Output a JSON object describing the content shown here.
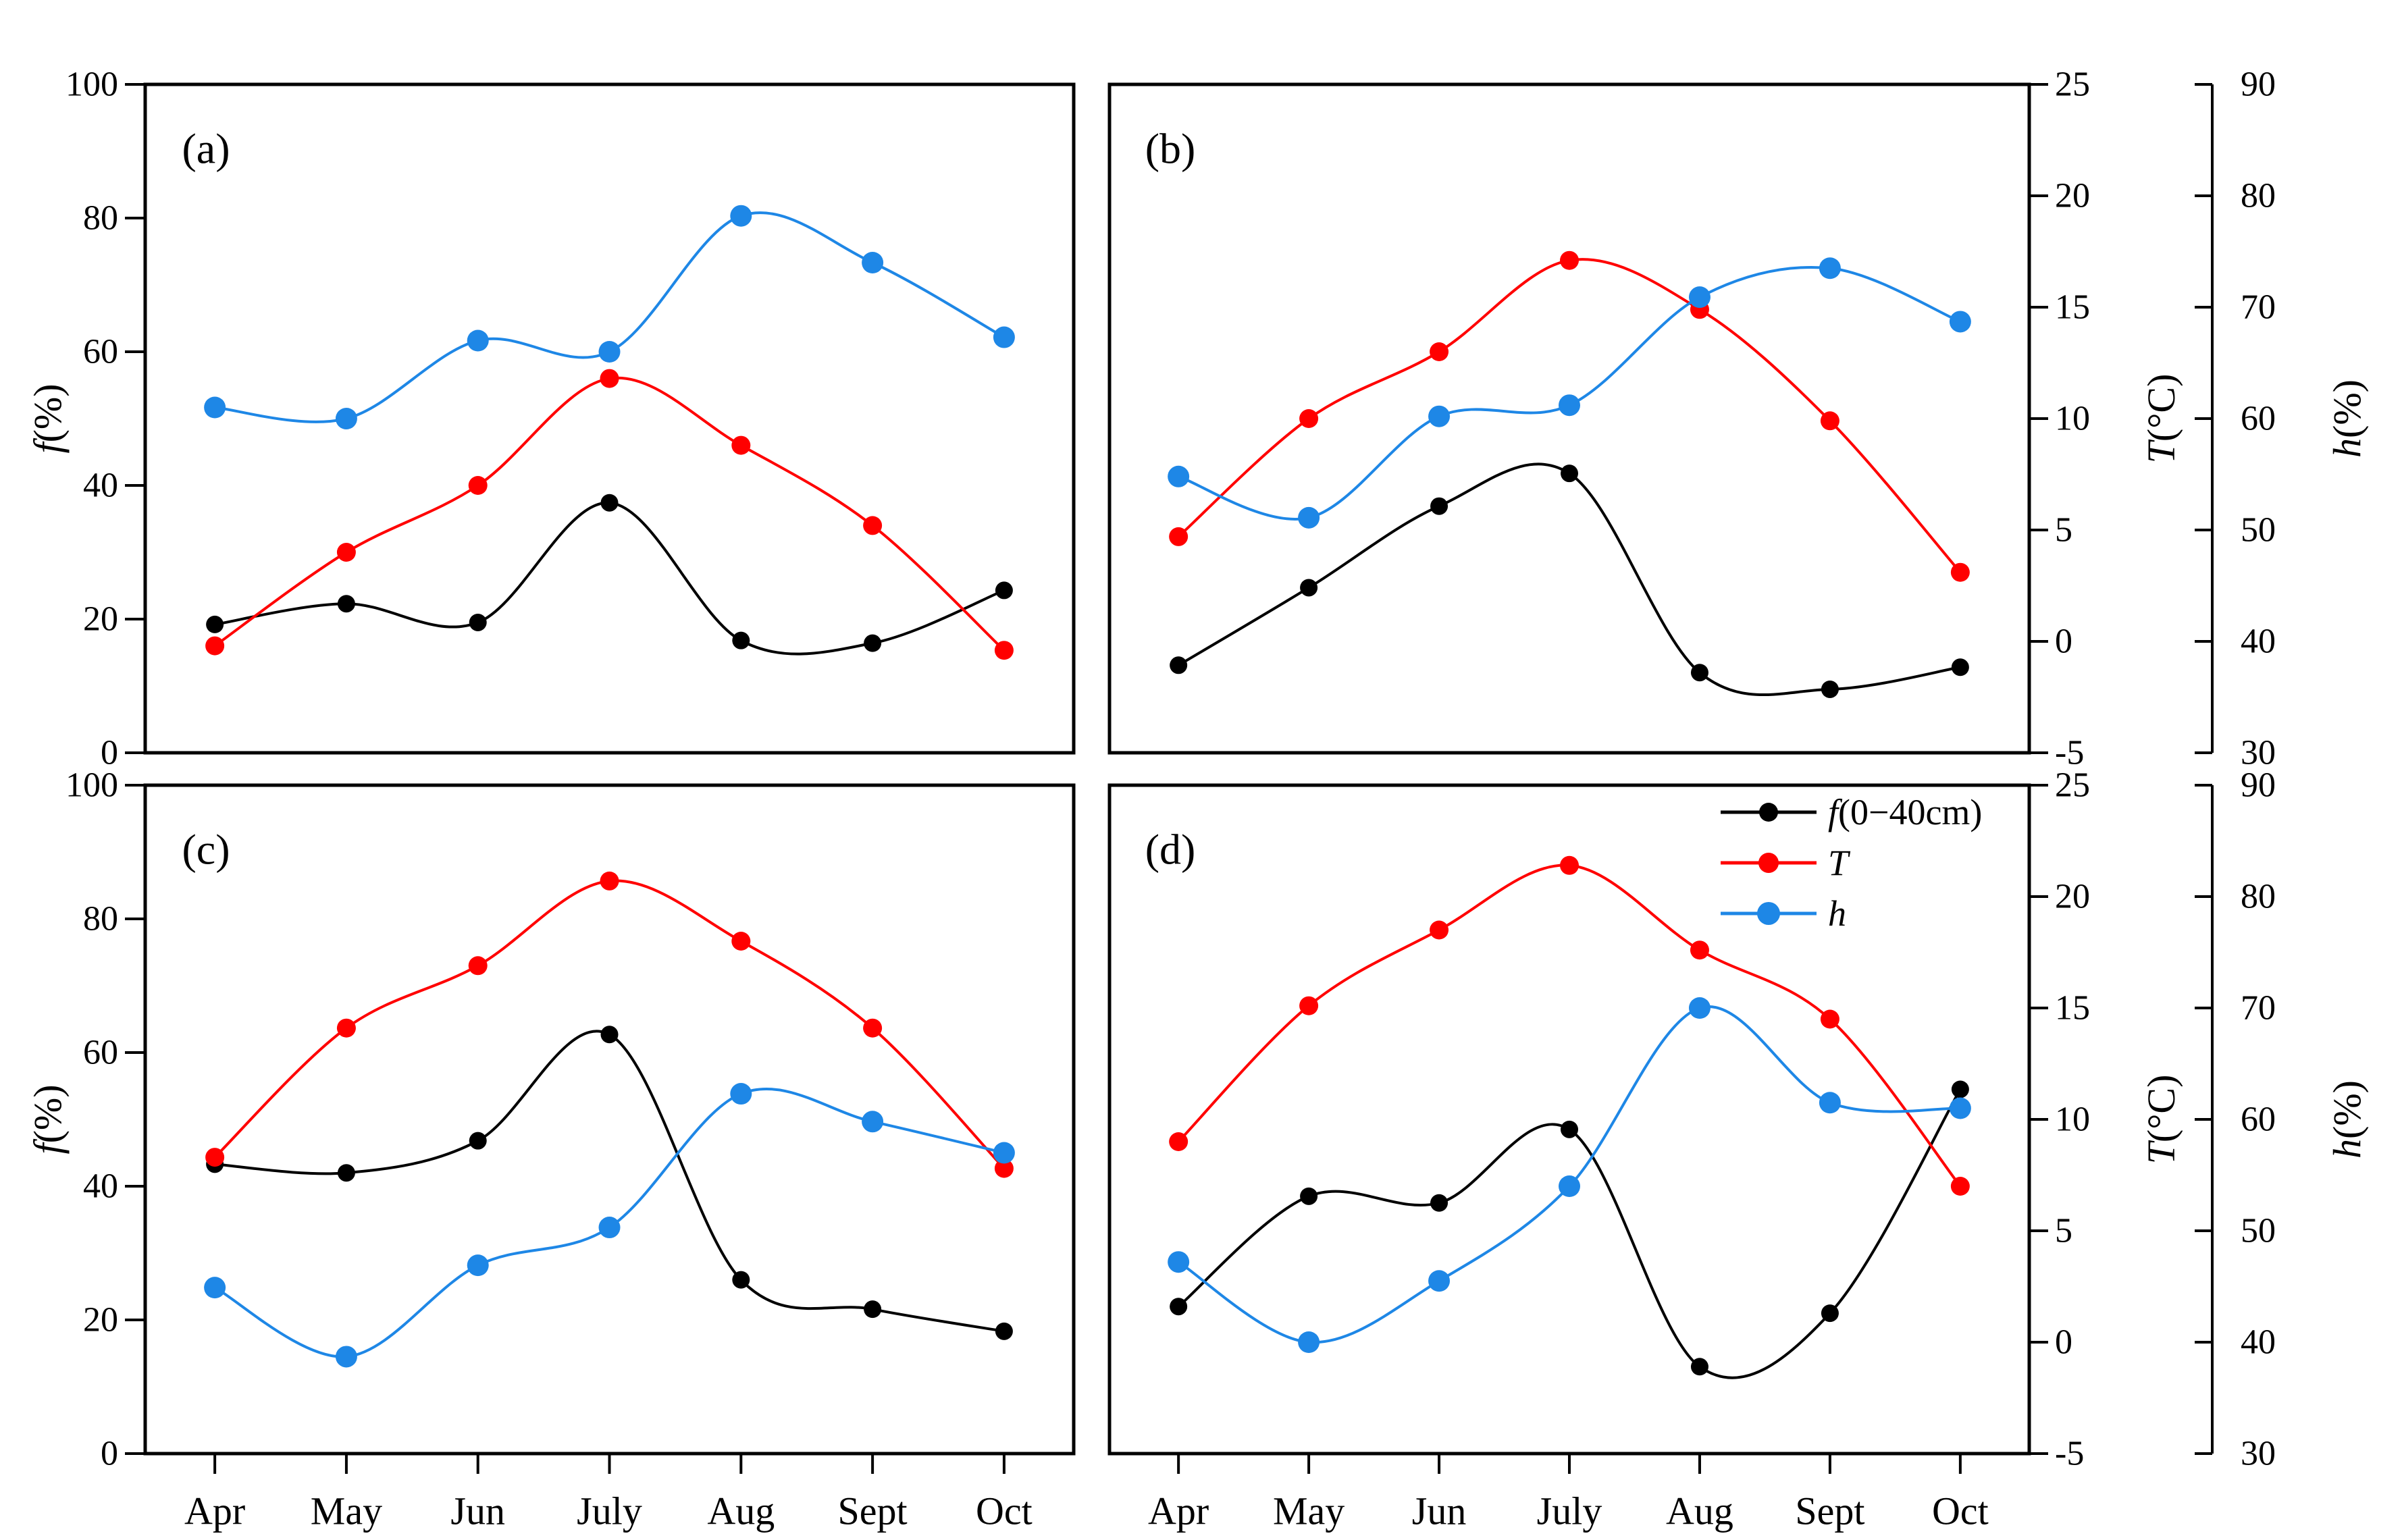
{
  "figure": {
    "background": "#ffffff",
    "description": "Four-panel seasonal line chart (a,b,c,d) of frequency f, temperature T and humidity h by month"
  },
  "chart_data": {
    "type": "line",
    "layout": "2x2-panels",
    "categories": [
      "Apr",
      "May",
      "Jun",
      "July",
      "Aug",
      "Sept",
      "Oct"
    ],
    "colors": {
      "f": "#000000",
      "T": "#ff0000",
      "h": "#1e87e6"
    },
    "marker": "filled-circle",
    "axes": {
      "left": {
        "label": "f(%)",
        "range": [
          0,
          100
        ],
        "ticks": [
          0,
          20,
          40,
          60,
          80,
          100
        ],
        "side": "left",
        "applies_to": [
          "a",
          "c"
        ]
      },
      "right_T": {
        "label": "T(°C)",
        "range": [
          -5,
          25
        ],
        "ticks": [
          -5,
          0,
          5,
          10,
          15,
          20,
          25
        ],
        "side": "right",
        "applies_to": [
          "b",
          "d"
        ]
      },
      "right_h": {
        "label": "h(%)",
        "range": [
          30,
          90
        ],
        "ticks": [
          30,
          40,
          50,
          60,
          70,
          80,
          90
        ],
        "side": "right-offset",
        "applies_to": [
          "b",
          "d"
        ]
      }
    },
    "legend": {
      "location": "panel-d-top-right",
      "items": [
        {
          "series": "f",
          "label": "f(0−40cm)"
        },
        {
          "series": "T",
          "label": "T"
        },
        {
          "series": "h",
          "label": "h"
        }
      ]
    },
    "panels": [
      {
        "id": "a",
        "label": "(a)",
        "series": [
          {
            "name": "f",
            "axis": "left",
            "values": [
              19.2,
              22.3,
              19.5,
              37.4,
              16.8,
              16.4,
              24.3
            ]
          },
          {
            "name": "T",
            "axis": "right_T",
            "values": [
              -0.2,
              4.0,
              7.0,
              11.8,
              8.8,
              5.2,
              -0.4
            ]
          },
          {
            "name": "h",
            "axis": "right_h",
            "values": [
              61.0,
              60.0,
              67.0,
              66.0,
              78.2,
              74.0,
              67.3
            ]
          }
        ]
      },
      {
        "id": "b",
        "label": "(b)",
        "series": [
          {
            "name": "f",
            "axis": "left",
            "values": [
              13.1,
              24.7,
              36.9,
              41.8,
              12.0,
              9.5,
              12.8
            ]
          },
          {
            "name": "T",
            "axis": "right_T",
            "values": [
              4.7,
              10.0,
              13.0,
              17.1,
              14.9,
              9.9,
              3.1
            ]
          },
          {
            "name": "h",
            "axis": "right_h",
            "values": [
              54.8,
              51.1,
              60.2,
              61.2,
              70.9,
              73.5,
              68.7
            ]
          }
        ]
      },
      {
        "id": "c",
        "label": "(c)",
        "series": [
          {
            "name": "f",
            "axis": "left",
            "values": [
              43.3,
              42.0,
              46.8,
              62.7,
              26.0,
              21.6,
              18.3
            ]
          },
          {
            "name": "T",
            "axis": "right_T",
            "values": [
              8.3,
              14.1,
              16.9,
              20.7,
              18.0,
              14.1,
              7.8
            ]
          },
          {
            "name": "h",
            "axis": "right_h",
            "values": [
              44.9,
              38.7,
              46.9,
              50.3,
              62.3,
              59.8,
              57.0
            ]
          }
        ]
      },
      {
        "id": "d",
        "label": "(d)",
        "series": [
          {
            "name": "f",
            "axis": "left",
            "values": [
              22.0,
              38.5,
              37.5,
              48.5,
              13.0,
              21.0,
              54.5
            ]
          },
          {
            "name": "T",
            "axis": "right_T",
            "values": [
              9.0,
              15.1,
              18.5,
              21.4,
              17.6,
              14.5,
              7.0
            ]
          },
          {
            "name": "h",
            "axis": "right_h",
            "values": [
              47.2,
              40.0,
              45.5,
              54.0,
              70.0,
              61.5,
              61.0
            ]
          }
        ]
      }
    ]
  }
}
